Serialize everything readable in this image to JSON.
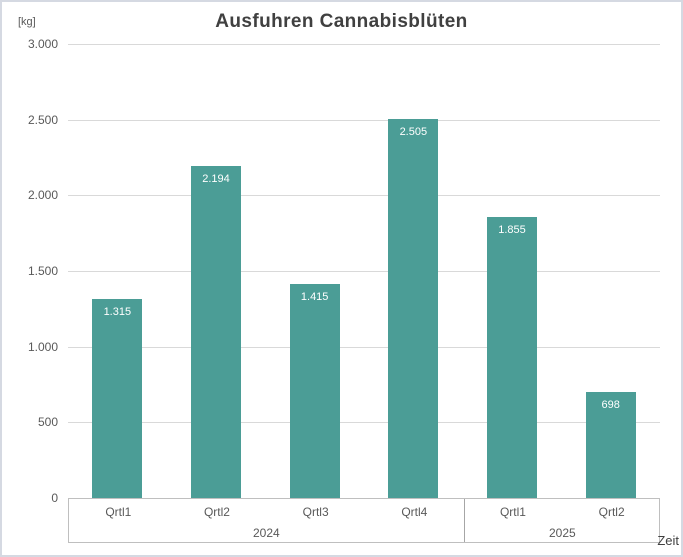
{
  "chart_data": {
    "type": "bar",
    "title": "Ausfuhren Cannabisblüten",
    "unit_label": "[kg]",
    "xlabel": "Zeit",
    "ylabel": "[kg]",
    "ylim": [
      0,
      3000
    ],
    "grid": true,
    "legend": "none",
    "bar_color": "#4B9D96",
    "gridline_color": "#D9D9D9",
    "axis_line_color": "#BFBFBF",
    "text_color": "#595959",
    "title_color": "#404040",
    "y_ticks": [
      {
        "value": 3000,
        "label": "3.000"
      },
      {
        "value": 2500,
        "label": "2.500"
      },
      {
        "value": 2000,
        "label": "2.000"
      },
      {
        "value": 1500,
        "label": "1.500"
      },
      {
        "value": 1000,
        "label": "1.000"
      },
      {
        "value": 500,
        "label": "500"
      },
      {
        "value": 0,
        "label": "0"
      }
    ],
    "bars": [
      {
        "quarter": "Qrtl1",
        "year": "2024",
        "value": 1315,
        "label": "1.315"
      },
      {
        "quarter": "Qrtl2",
        "year": "2024",
        "value": 2194,
        "label": "2.194"
      },
      {
        "quarter": "Qrtl3",
        "year": "2024",
        "value": 1415,
        "label": "1.415"
      },
      {
        "quarter": "Qrtl4",
        "year": "2024",
        "value": 2505,
        "label": "2.505"
      },
      {
        "quarter": "Qrtl1",
        "year": "2025",
        "value": 1855,
        "label": "1.855"
      },
      {
        "quarter": "Qrtl2",
        "year": "2025",
        "value": 698,
        "label": "698"
      }
    ],
    "year_groups": [
      {
        "label": "2024",
        "span": 4
      },
      {
        "label": "2025",
        "span": 2
      }
    ]
  }
}
